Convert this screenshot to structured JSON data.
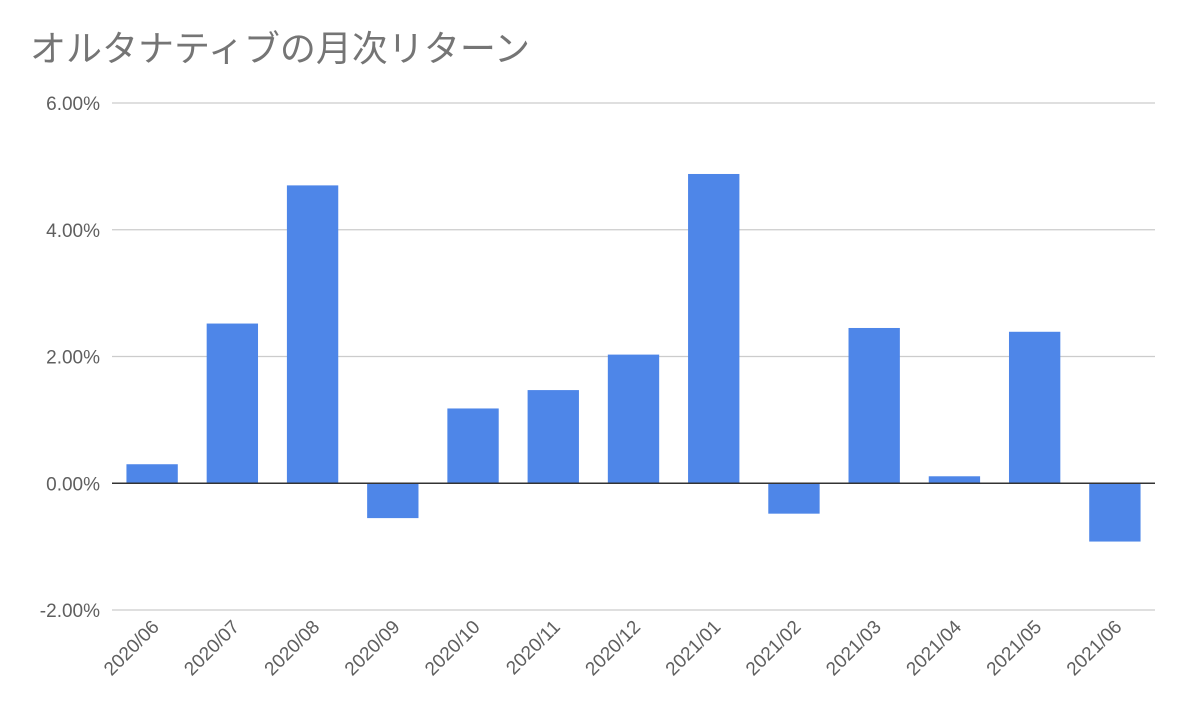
{
  "chart_data": {
    "type": "bar",
    "title": "オルタナティブの月次リターン",
    "xlabel": "",
    "ylabel": "",
    "categories": [
      "2020/06",
      "2020/07",
      "2020/08",
      "2020/09",
      "2020/10",
      "2020/11",
      "2020/12",
      "2021/01",
      "2021/02",
      "2021/03",
      "2021/04",
      "2021/05",
      "2021/06"
    ],
    "values": [
      0.3,
      2.52,
      4.7,
      -0.55,
      1.18,
      1.47,
      2.03,
      4.88,
      -0.48,
      2.45,
      0.11,
      2.39,
      -0.92
    ],
    "ylim": [
      -2,
      6
    ],
    "yticks": [
      -2,
      0,
      2,
      4,
      6
    ],
    "ytick_labels": [
      "-2.00%",
      "0.00%",
      "2.00%",
      "4.00%",
      "6.00%"
    ],
    "grid": true,
    "legend": "none",
    "bar_color": "#4e86e8"
  }
}
